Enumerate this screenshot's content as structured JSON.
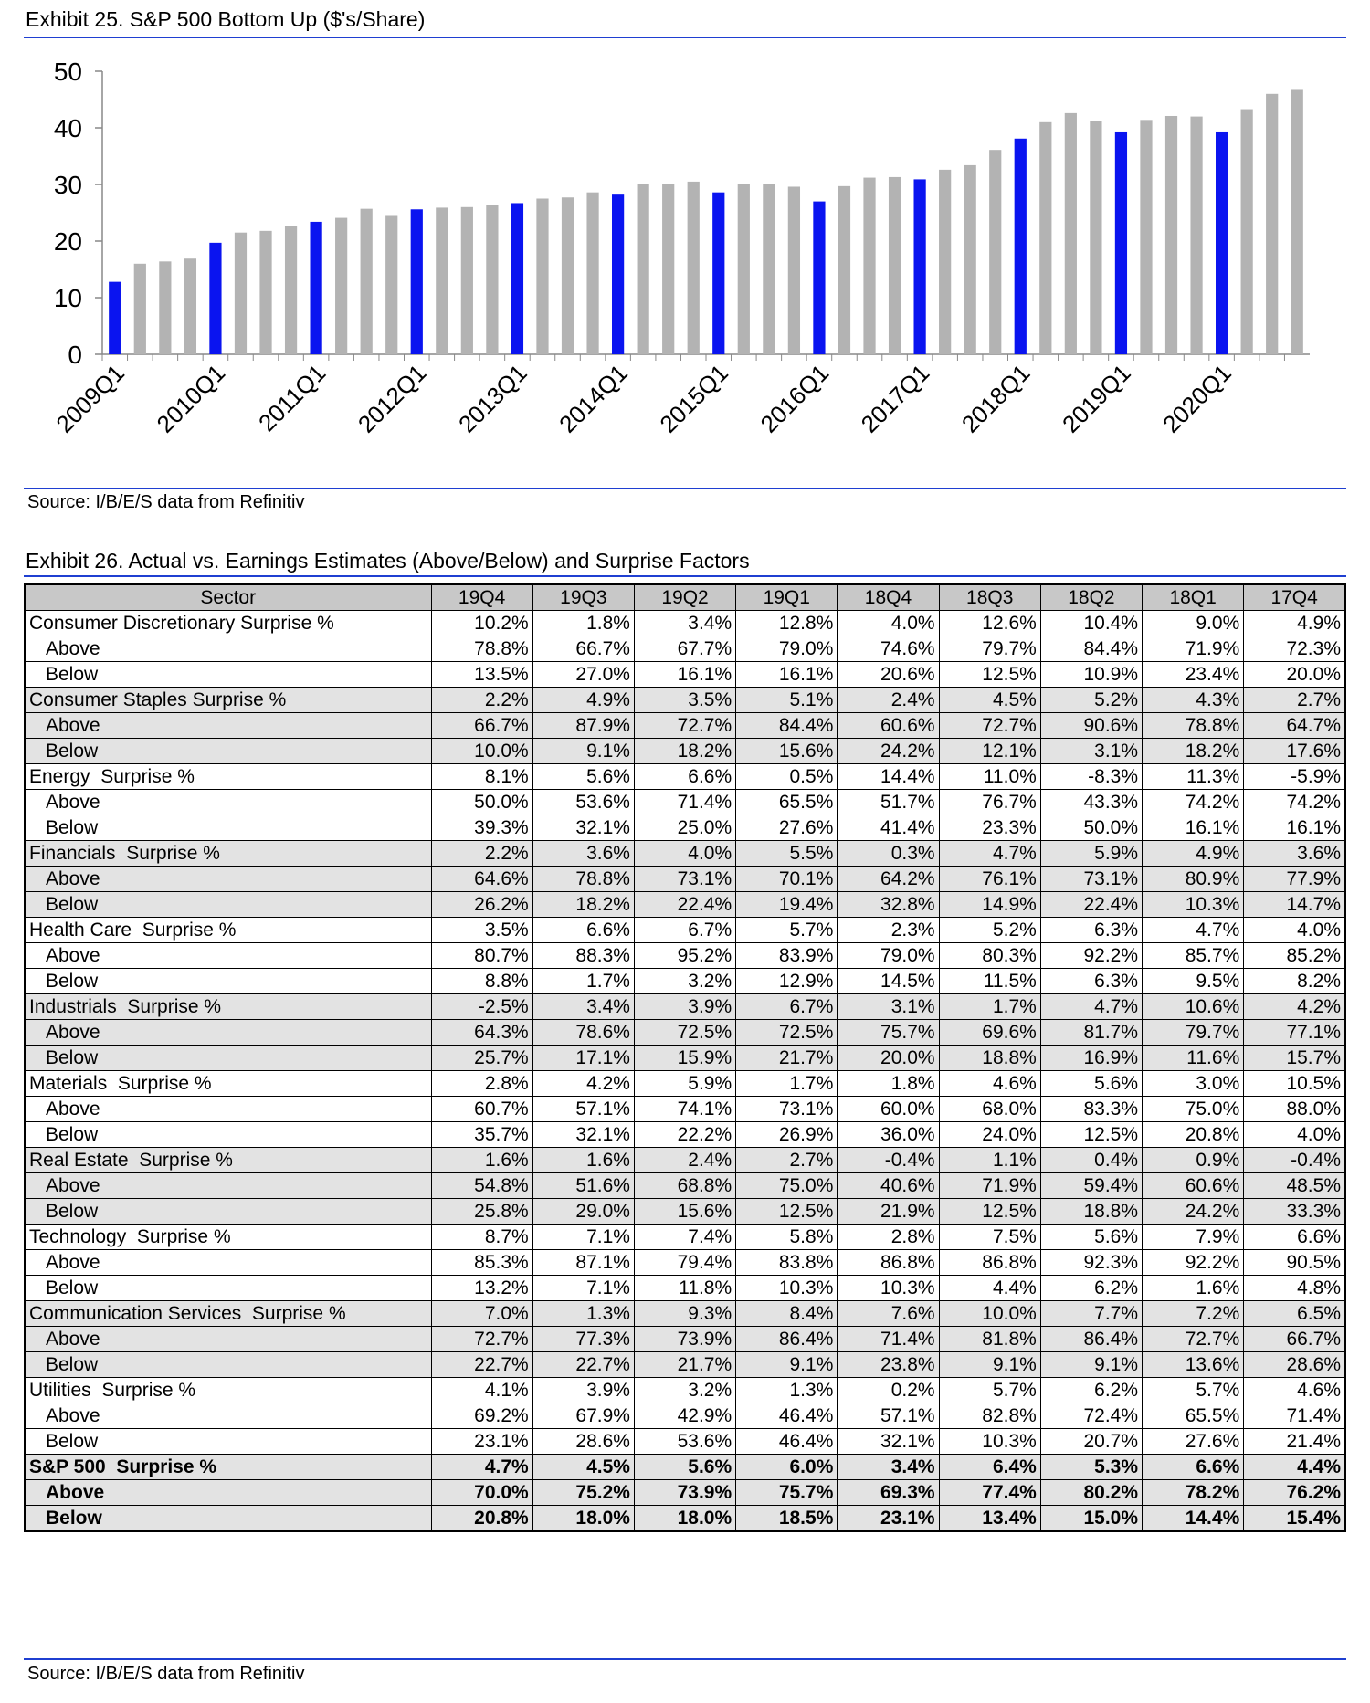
{
  "chart_data": {
    "type": "bar",
    "title": "Exhibit 25. S&P 500 Bottom Up ($'s/Share)",
    "source": "Source: I/B/E/S data from Refinitiv",
    "categories": [
      "2009Q1",
      null,
      null,
      null,
      "2010Q1",
      null,
      null,
      null,
      "2011Q1",
      null,
      null,
      null,
      "2012Q1",
      null,
      null,
      null,
      "2013Q1",
      null,
      null,
      null,
      "2014Q1",
      null,
      null,
      null,
      "2015Q1",
      null,
      null,
      null,
      "2016Q1",
      null,
      null,
      null,
      "2017Q1",
      null,
      null,
      null,
      "2018Q1",
      null,
      null,
      null,
      "2019Q1",
      null,
      null,
      null,
      "2020Q1",
      null,
      null,
      null
    ],
    "values": [
      12.8,
      16.0,
      16.4,
      16.9,
      19.7,
      21.5,
      21.8,
      22.6,
      23.4,
      24.1,
      25.7,
      24.6,
      25.6,
      25.9,
      26.0,
      26.3,
      26.7,
      27.5,
      27.7,
      28.6,
      28.2,
      30.1,
      30.0,
      30.5,
      28.6,
      30.1,
      30.0,
      29.6,
      27.0,
      29.7,
      31.2,
      31.3,
      30.9,
      32.6,
      33.4,
      36.1,
      38.1,
      41.0,
      42.6,
      41.2,
      39.2,
      41.4,
      42.1,
      42.0,
      39.2,
      43.3,
      46.0,
      46.7
    ],
    "colors": [
      "#0a14f0",
      "#b3b3b3",
      "#b3b3b3",
      "#b3b3b3",
      "#0a14f0",
      "#b3b3b3",
      "#b3b3b3",
      "#b3b3b3",
      "#0a14f0",
      "#b3b3b3",
      "#b3b3b3",
      "#b3b3b3",
      "#0a14f0",
      "#b3b3b3",
      "#b3b3b3",
      "#b3b3b3",
      "#0a14f0",
      "#b3b3b3",
      "#b3b3b3",
      "#b3b3b3",
      "#0a14f0",
      "#b3b3b3",
      "#b3b3b3",
      "#b3b3b3",
      "#0a14f0",
      "#b3b3b3",
      "#b3b3b3",
      "#b3b3b3",
      "#0a14f0",
      "#b3b3b3",
      "#b3b3b3",
      "#b3b3b3",
      "#0a14f0",
      "#b3b3b3",
      "#b3b3b3",
      "#b3b3b3",
      "#0a14f0",
      "#b3b3b3",
      "#b3b3b3",
      "#b3b3b3",
      "#0a14f0",
      "#b3b3b3",
      "#b3b3b3",
      "#b3b3b3",
      "#0a14f0",
      "#b3b3b3",
      "#b3b3b3",
      "#b3b3b3"
    ],
    "ylim": [
      0,
      50
    ],
    "yticks": [
      0,
      10,
      20,
      30,
      40,
      50
    ],
    "grid": false
  },
  "table": {
    "title": "Exhibit 26. Actual vs. Earnings Estimates (Above/Below) and Surprise Factors",
    "source": "Source: I/B/E/S data from Refinitiv",
    "header": [
      "Sector",
      "19Q4",
      "19Q3",
      "19Q2",
      "19Q1",
      "18Q4",
      "18Q3",
      "18Q2",
      "18Q1",
      "17Q4"
    ],
    "rows": [
      [
        "Consumer Discretionary Surprise %",
        "10.2%",
        "1.8%",
        "3.4%",
        "12.8%",
        "4.0%",
        "12.6%",
        "10.4%",
        "9.0%",
        "4.9%"
      ],
      [
        "Above",
        "78.8%",
        "66.7%",
        "67.7%",
        "79.0%",
        "74.6%",
        "79.7%",
        "84.4%",
        "71.9%",
        "72.3%"
      ],
      [
        "Below",
        "13.5%",
        "27.0%",
        "16.1%",
        "16.1%",
        "20.6%",
        "12.5%",
        "10.9%",
        "23.4%",
        "20.0%"
      ],
      [
        "Consumer Staples Surprise %",
        "2.2%",
        "4.9%",
        "3.5%",
        "5.1%",
        "2.4%",
        "4.5%",
        "5.2%",
        "4.3%",
        "2.7%"
      ],
      [
        "Above",
        "66.7%",
        "87.9%",
        "72.7%",
        "84.4%",
        "60.6%",
        "72.7%",
        "90.6%",
        "78.8%",
        "64.7%"
      ],
      [
        "Below",
        "10.0%",
        "9.1%",
        "18.2%",
        "15.6%",
        "24.2%",
        "12.1%",
        "3.1%",
        "18.2%",
        "17.6%"
      ],
      [
        "Energy  Surprise %",
        "8.1%",
        "5.6%",
        "6.6%",
        "0.5%",
        "14.4%",
        "11.0%",
        "-8.3%",
        "11.3%",
        "-5.9%"
      ],
      [
        "Above",
        "50.0%",
        "53.6%",
        "71.4%",
        "65.5%",
        "51.7%",
        "76.7%",
        "43.3%",
        "74.2%",
        "74.2%"
      ],
      [
        "Below",
        "39.3%",
        "32.1%",
        "25.0%",
        "27.6%",
        "41.4%",
        "23.3%",
        "50.0%",
        "16.1%",
        "16.1%"
      ],
      [
        "Financials  Surprise %",
        "2.2%",
        "3.6%",
        "4.0%",
        "5.5%",
        "0.3%",
        "4.7%",
        "5.9%",
        "4.9%",
        "3.6%"
      ],
      [
        "Above",
        "64.6%",
        "78.8%",
        "73.1%",
        "70.1%",
        "64.2%",
        "76.1%",
        "73.1%",
        "80.9%",
        "77.9%"
      ],
      [
        "Below",
        "26.2%",
        "18.2%",
        "22.4%",
        "19.4%",
        "32.8%",
        "14.9%",
        "22.4%",
        "10.3%",
        "14.7%"
      ],
      [
        "Health Care  Surprise %",
        "3.5%",
        "6.6%",
        "6.7%",
        "5.7%",
        "2.3%",
        "5.2%",
        "6.3%",
        "4.7%",
        "4.0%"
      ],
      [
        "Above",
        "80.7%",
        "88.3%",
        "95.2%",
        "83.9%",
        "79.0%",
        "80.3%",
        "92.2%",
        "85.7%",
        "85.2%"
      ],
      [
        "Below",
        "8.8%",
        "1.7%",
        "3.2%",
        "12.9%",
        "14.5%",
        "11.5%",
        "6.3%",
        "9.5%",
        "8.2%"
      ],
      [
        "Industrials  Surprise %",
        "-2.5%",
        "3.4%",
        "3.9%",
        "6.7%",
        "3.1%",
        "1.7%",
        "4.7%",
        "10.6%",
        "4.2%"
      ],
      [
        "Above",
        "64.3%",
        "78.6%",
        "72.5%",
        "72.5%",
        "75.7%",
        "69.6%",
        "81.7%",
        "79.7%",
        "77.1%"
      ],
      [
        "Below",
        "25.7%",
        "17.1%",
        "15.9%",
        "21.7%",
        "20.0%",
        "18.8%",
        "16.9%",
        "11.6%",
        "15.7%"
      ],
      [
        "Materials  Surprise %",
        "2.8%",
        "4.2%",
        "5.9%",
        "1.7%",
        "1.8%",
        "4.6%",
        "5.6%",
        "3.0%",
        "10.5%"
      ],
      [
        "Above",
        "60.7%",
        "57.1%",
        "74.1%",
        "73.1%",
        "60.0%",
        "68.0%",
        "83.3%",
        "75.0%",
        "88.0%"
      ],
      [
        "Below",
        "35.7%",
        "32.1%",
        "22.2%",
        "26.9%",
        "36.0%",
        "24.0%",
        "12.5%",
        "20.8%",
        "4.0%"
      ],
      [
        "Real Estate  Surprise %",
        "1.6%",
        "1.6%",
        "2.4%",
        "2.7%",
        "-0.4%",
        "1.1%",
        "0.4%",
        "0.9%",
        "-0.4%"
      ],
      [
        "Above",
        "54.8%",
        "51.6%",
        "68.8%",
        "75.0%",
        "40.6%",
        "71.9%",
        "59.4%",
        "60.6%",
        "48.5%"
      ],
      [
        "Below",
        "25.8%",
        "29.0%",
        "15.6%",
        "12.5%",
        "21.9%",
        "12.5%",
        "18.8%",
        "24.2%",
        "33.3%"
      ],
      [
        "Technology  Surprise %",
        "8.7%",
        "7.1%",
        "7.4%",
        "5.8%",
        "2.8%",
        "7.5%",
        "5.6%",
        "7.9%",
        "6.6%"
      ],
      [
        "Above",
        "85.3%",
        "87.1%",
        "79.4%",
        "83.8%",
        "86.8%",
        "86.8%",
        "92.3%",
        "92.2%",
        "90.5%"
      ],
      [
        "Below",
        "13.2%",
        "7.1%",
        "11.8%",
        "10.3%",
        "10.3%",
        "4.4%",
        "6.2%",
        "1.6%",
        "4.8%"
      ],
      [
        "Communication Services  Surprise %",
        "7.0%",
        "1.3%",
        "9.3%",
        "8.4%",
        "7.6%",
        "10.0%",
        "7.7%",
        "7.2%",
        "6.5%"
      ],
      [
        "Above",
        "72.7%",
        "77.3%",
        "73.9%",
        "86.4%",
        "71.4%",
        "81.8%",
        "86.4%",
        "72.7%",
        "66.7%"
      ],
      [
        "Below",
        "22.7%",
        "22.7%",
        "21.7%",
        "9.1%",
        "23.8%",
        "9.1%",
        "9.1%",
        "13.6%",
        "28.6%"
      ],
      [
        "Utilities  Surprise %",
        "4.1%",
        "3.9%",
        "3.2%",
        "1.3%",
        "0.2%",
        "5.7%",
        "6.2%",
        "5.7%",
        "4.6%"
      ],
      [
        "Above",
        "69.2%",
        "67.9%",
        "42.9%",
        "46.4%",
        "57.1%",
        "82.8%",
        "72.4%",
        "65.5%",
        "71.4%"
      ],
      [
        "Below",
        "23.1%",
        "28.6%",
        "53.6%",
        "46.4%",
        "32.1%",
        "10.3%",
        "20.7%",
        "27.6%",
        "21.4%"
      ],
      [
        "S&P 500  Surprise %",
        "4.7%",
        "4.5%",
        "5.6%",
        "6.0%",
        "3.4%",
        "6.4%",
        "5.3%",
        "6.6%",
        "4.4%"
      ],
      [
        "Above",
        "70.0%",
        "75.2%",
        "73.9%",
        "75.7%",
        "69.3%",
        "77.4%",
        "80.2%",
        "78.2%",
        "76.2%"
      ],
      [
        "Below",
        "20.8%",
        "18.0%",
        "18.0%",
        "18.5%",
        "23.1%",
        "13.4%",
        "15.0%",
        "14.4%",
        "15.4%"
      ]
    ]
  }
}
